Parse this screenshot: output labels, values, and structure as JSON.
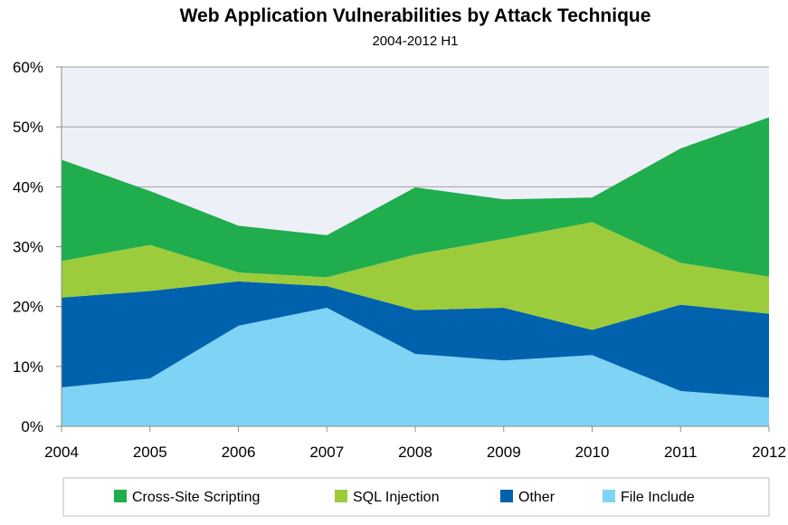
{
  "chart_data": {
    "type": "area",
    "stacked": true,
    "title": "Web Application Vulnerabilities by Attack Technique",
    "subtitle": "2004-2012 H1",
    "xlabel": "",
    "ylabel": "",
    "categories": [
      "2004",
      "2005",
      "2006",
      "2007",
      "2008",
      "2009",
      "2010",
      "2011",
      "2012"
    ],
    "ylim": [
      0,
      60
    ],
    "yticks": [
      "0%",
      "10%",
      "20%",
      "30%",
      "40%",
      "50%",
      "60%"
    ],
    "grid": true,
    "legend_position": "bottom",
    "series": [
      {
        "name": "File Include",
        "color": "#7fd3f4",
        "values": [
          6.5,
          8,
          16.8,
          19.8,
          12.1,
          11,
          11.9,
          5.9,
          4.8
        ]
      },
      {
        "name": "Other",
        "color": "#0062ad",
        "values": [
          15,
          14.6,
          7.4,
          3.6,
          7.3,
          8.8,
          4.2,
          14.4,
          14
        ]
      },
      {
        "name": "SQL Injection",
        "color": "#9ccc3c",
        "values": [
          6.1,
          7.7,
          1.5,
          1.5,
          9.3,
          11.5,
          18,
          7,
          6.2
        ]
      },
      {
        "name": "Cross-Site Scripting",
        "color": "#1fad4d",
        "values": [
          16.9,
          9,
          7.8,
          7,
          11.2,
          6.6,
          4.1,
          19.1,
          26.6
        ]
      }
    ],
    "legend_order": [
      "Cross-Site Scripting",
      "SQL Injection",
      "Other",
      "File Include"
    ]
  }
}
